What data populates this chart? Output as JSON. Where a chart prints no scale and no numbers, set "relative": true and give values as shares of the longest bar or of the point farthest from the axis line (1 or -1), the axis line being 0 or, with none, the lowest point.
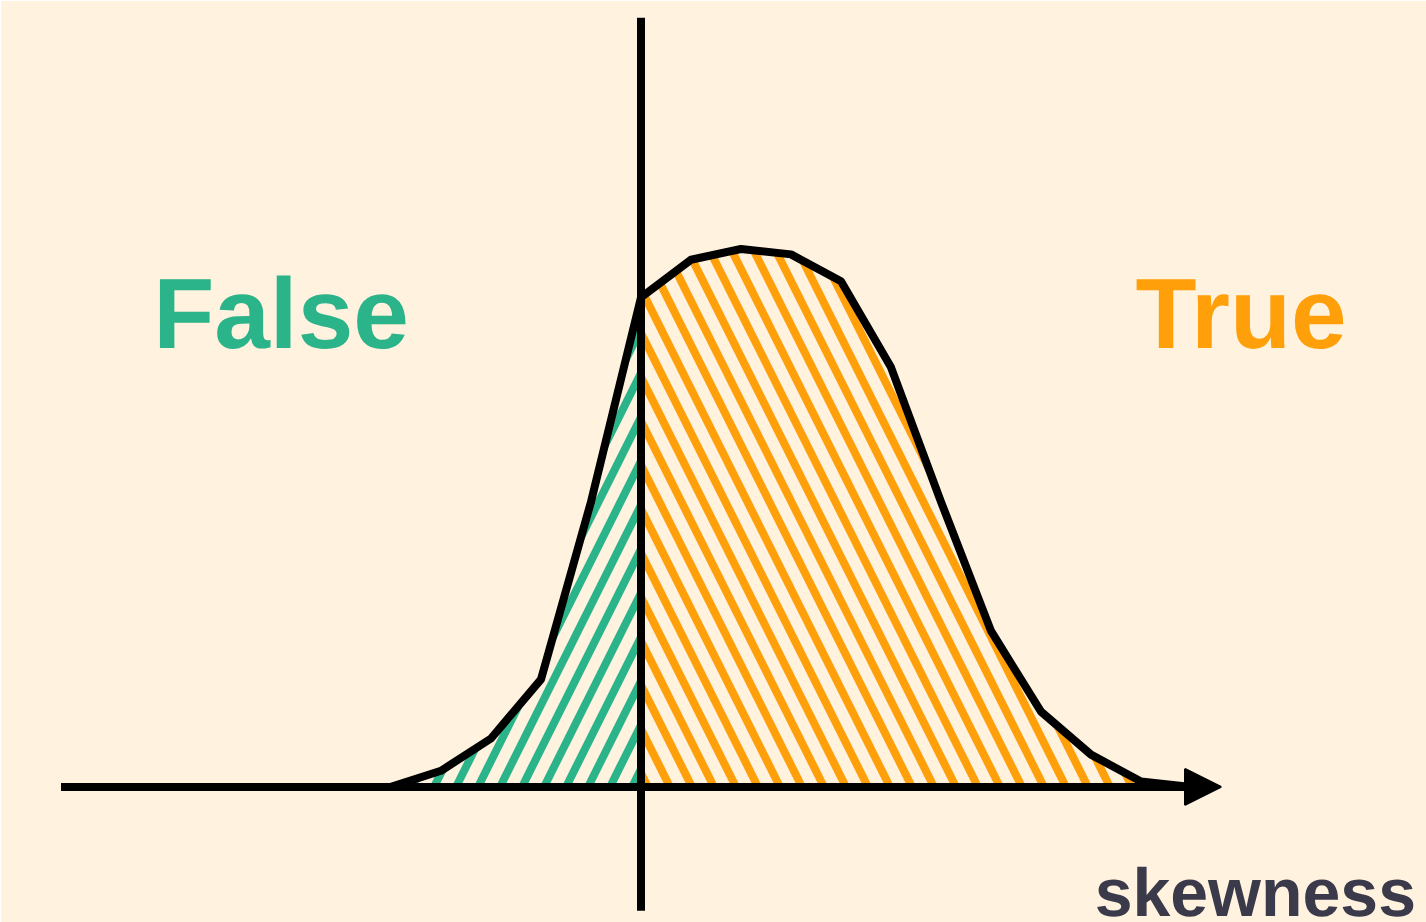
{
  "chart_data": {
    "type": "area",
    "relative": true,
    "xlabel": "skewness",
    "categories": [
      null,
      null,
      null,
      null,
      null,
      null,
      null,
      null,
      null,
      null,
      null,
      null,
      null,
      null,
      null,
      null,
      null
    ],
    "legend": false,
    "series": [
      {
        "name": "False",
        "color": "#2bb389",
        "values": [
          0,
          0.03,
          0.09,
          0.2,
          0.53,
          0.91,
          null,
          null,
          null,
          null,
          null,
          null,
          null,
          null,
          null,
          null,
          null
        ]
      },
      {
        "name": "True",
        "color": "#ff9f0a",
        "values": [
          null,
          null,
          null,
          null,
          null,
          0.91,
          0.98,
          1.0,
          0.99,
          0.94,
          0.78,
          0.53,
          0.29,
          0.14,
          0.06,
          0.01,
          0
        ]
      }
    ]
  }
}
